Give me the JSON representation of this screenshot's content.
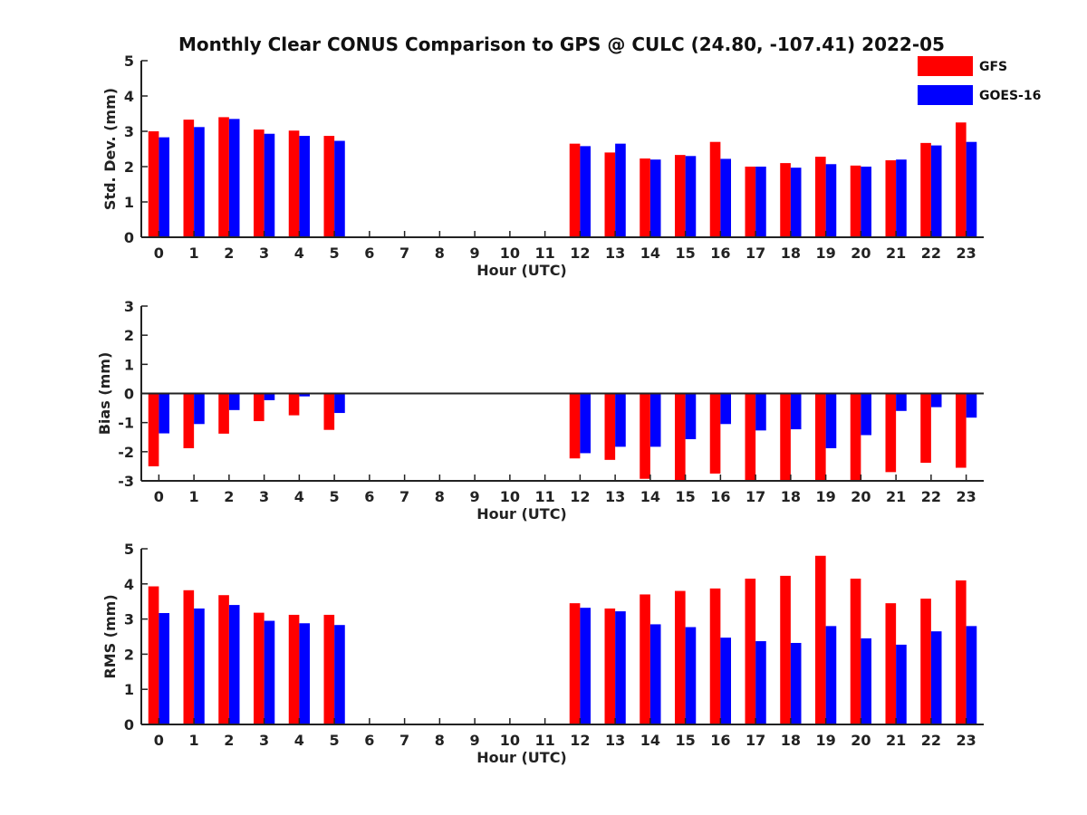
{
  "figure": {
    "title": "Monthly Clear CONUS Comparison to GPS @ CULC (24.80, -107.41) 2022-05"
  },
  "legend": {
    "placement": "top-right",
    "entries": [
      {
        "name": "GFS",
        "color": "#ff0000"
      },
      {
        "name": "GOES-16",
        "color": "#0000ff"
      }
    ]
  },
  "chart_data": [
    {
      "type": "bar",
      "xlabel": "Hour (UTC)",
      "ylabel": "Std. Dev. (mm)",
      "ylim": [
        0,
        5
      ],
      "yticks": [
        0,
        1,
        2,
        3,
        4,
        5
      ],
      "categories": [
        "0",
        "1",
        "2",
        "3",
        "4",
        "5",
        "6",
        "7",
        "8",
        "9",
        "10",
        "11",
        "12",
        "13",
        "14",
        "15",
        "16",
        "17",
        "18",
        "19",
        "20",
        "21",
        "22",
        "23"
      ],
      "series": [
        {
          "name": "GFS",
          "color": "#ff0000",
          "values": [
            3.0,
            3.33,
            3.4,
            3.05,
            3.02,
            2.87,
            null,
            null,
            null,
            null,
            null,
            null,
            2.65,
            2.4,
            2.23,
            2.33,
            2.7,
            2.0,
            2.1,
            2.28,
            2.03,
            2.18,
            2.67,
            3.25
          ]
        },
        {
          "name": "GOES-16",
          "color": "#0000ff",
          "values": [
            2.83,
            3.12,
            3.35,
            2.93,
            2.87,
            2.73,
            null,
            null,
            null,
            null,
            null,
            null,
            2.58,
            2.65,
            2.2,
            2.3,
            2.22,
            2.0,
            1.97,
            2.07,
            2.0,
            2.2,
            2.6,
            2.7
          ]
        }
      ]
    },
    {
      "type": "bar",
      "xlabel": "Hour (UTC)",
      "ylabel": "Bias (mm)",
      "ylim": [
        -3,
        3
      ],
      "yticks": [
        -3,
        -2,
        -1,
        0,
        1,
        2,
        3
      ],
      "categories": [
        "0",
        "1",
        "2",
        "3",
        "4",
        "5",
        "6",
        "7",
        "8",
        "9",
        "10",
        "11",
        "12",
        "13",
        "14",
        "15",
        "16",
        "17",
        "18",
        "19",
        "20",
        "21",
        "22",
        "23"
      ],
      "series": [
        {
          "name": "GFS",
          "color": "#ff0000",
          "values": [
            -2.5,
            -1.88,
            -1.38,
            -0.95,
            -0.75,
            -1.25,
            null,
            null,
            null,
            null,
            null,
            null,
            -2.23,
            -2.28,
            -2.93,
            -3.2,
            -2.75,
            -3.1,
            -3.2,
            -3.3,
            -3.1,
            -2.7,
            -2.38,
            -2.55
          ]
        },
        {
          "name": "GOES-16",
          "color": "#0000ff",
          "values": [
            -1.37,
            -1.05,
            -0.57,
            -0.23,
            -0.1,
            -0.67,
            null,
            null,
            null,
            null,
            null,
            null,
            -2.05,
            -1.83,
            -1.83,
            -1.57,
            -1.05,
            -1.27,
            -1.23,
            -1.88,
            -1.43,
            -0.6,
            -0.47,
            -0.83
          ]
        }
      ]
    },
    {
      "type": "bar",
      "xlabel": "Hour (UTC)",
      "ylabel": "RMS (mm)",
      "ylim": [
        0,
        5
      ],
      "yticks": [
        0,
        1,
        2,
        3,
        4,
        5
      ],
      "categories": [
        "0",
        "1",
        "2",
        "3",
        "4",
        "5",
        "6",
        "7",
        "8",
        "9",
        "10",
        "11",
        "12",
        "13",
        "14",
        "15",
        "16",
        "17",
        "18",
        "19",
        "20",
        "21",
        "22",
        "23"
      ],
      "series": [
        {
          "name": "GFS",
          "color": "#ff0000",
          "values": [
            3.93,
            3.82,
            3.68,
            3.18,
            3.12,
            3.12,
            null,
            null,
            null,
            null,
            null,
            null,
            3.45,
            3.3,
            3.7,
            3.8,
            3.87,
            4.15,
            4.23,
            4.8,
            4.15,
            3.45,
            3.58,
            4.1
          ]
        },
        {
          "name": "GOES-16",
          "color": "#0000ff",
          "values": [
            3.17,
            3.3,
            3.4,
            2.95,
            2.88,
            2.83,
            null,
            null,
            null,
            null,
            null,
            null,
            3.32,
            3.22,
            2.85,
            2.77,
            2.47,
            2.37,
            2.32,
            2.8,
            2.45,
            2.27,
            2.65,
            2.8
          ]
        }
      ]
    }
  ]
}
